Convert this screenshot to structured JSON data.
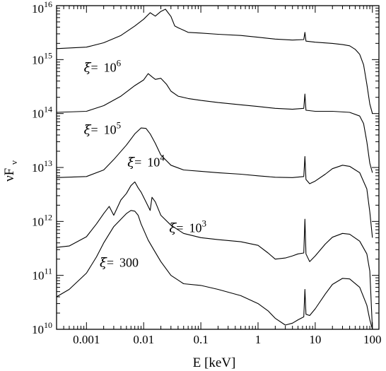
{
  "chart_data": {
    "type": "line",
    "xlabel": "E [keV]",
    "ylabel_base": "νF",
    "ylabel_sub": "ν",
    "xscale": "log",
    "yscale": "log",
    "xlim": [
      0.0003,
      130
    ],
    "ylim": [
      10000000000.0,
      1e+16
    ],
    "grid": false,
    "x_ticks": [
      {
        "value": 0.001,
        "label": "0.001"
      },
      {
        "value": 0.01,
        "label": "0.01"
      },
      {
        "value": 0.1,
        "label": "0.1"
      },
      {
        "value": 1,
        "label": "1"
      },
      {
        "value": 10,
        "label": "10"
      },
      {
        "value": 100,
        "label": "100"
      }
    ],
    "y_ticks": [
      {
        "value": 10000000000.0,
        "base": "10",
        "exp": "10"
      },
      {
        "value": 100000000000.0,
        "base": "10",
        "exp": "11"
      },
      {
        "value": 1000000000000.0,
        "base": "10",
        "exp": "12"
      },
      {
        "value": 10000000000000.0,
        "base": "10",
        "exp": "13"
      },
      {
        "value": 100000000000000.0,
        "base": "10",
        "exp": "14"
      },
      {
        "value": 1000000000000000.0,
        "base": "10",
        "exp": "15"
      },
      {
        "value": 1e+16,
        "base": "10",
        "exp": "16"
      }
    ],
    "annotations": [
      {
        "sym": "ξ",
        "eq": "=",
        "text": "10",
        "sup": "6",
        "x": 0.0009,
        "y": 600000000000000.0
      },
      {
        "sym": "ξ",
        "eq": "=",
        "text": "10",
        "sup": "5",
        "x": 0.0009,
        "y": 42000000000000.0
      },
      {
        "sym": "ξ",
        "eq": "=",
        "text": "10",
        "sup": "4",
        "x": 0.0052,
        "y": 10500000000000.0
      },
      {
        "sym": "ξ",
        "eq": "=",
        "text": "10",
        "sup": "3",
        "x": 0.028,
        "y": 630000000000.0
      },
      {
        "sym": "ξ",
        "eq": "=",
        "text": "300",
        "sup": "",
        "x": 0.0017,
        "y": 145000000000.0
      }
    ],
    "series": [
      {
        "xi": 1000000,
        "points": [
          [
            0.0003,
            1600000000000000.0
          ],
          [
            0.001,
            1700000000000000.0
          ],
          [
            0.002,
            2050000000000000.0
          ],
          [
            0.004,
            2800000000000000.0
          ],
          [
            0.007,
            4200000000000000.0
          ],
          [
            0.01,
            5600000000000000.0
          ],
          [
            0.013,
            7400000000000000.0
          ],
          [
            0.016,
            6400000000000000.0
          ],
          [
            0.02,
            7800000000000000.0
          ],
          [
            0.024,
            8600000000000000.0
          ],
          [
            0.03,
            6300000000000000.0
          ],
          [
            0.035,
            4200000000000000.0
          ],
          [
            0.04,
            3900000000000000.0
          ],
          [
            0.05,
            3500000000000000.0
          ],
          [
            0.06,
            3200000000000000.0
          ],
          [
            0.1,
            3100000000000000.0
          ],
          [
            0.2,
            2950000000000000.0
          ],
          [
            0.5,
            2800000000000000.0
          ],
          [
            1,
            2600000000000000.0
          ],
          [
            2,
            2400000000000000.0
          ],
          [
            4,
            2300000000000000.0
          ],
          [
            6.3,
            2350000000000000.0
          ],
          [
            6.6,
            3200000000000000.0
          ],
          [
            6.9,
            2200000000000000.0
          ],
          [
            10,
            2100000000000000.0
          ],
          [
            20,
            2000000000000000.0
          ],
          [
            30,
            1900000000000000.0
          ],
          [
            40,
            1800000000000000.0
          ],
          [
            50,
            1550000000000000.0
          ],
          [
            60,
            1250000000000000.0
          ],
          [
            70,
            800000000000000.0
          ],
          [
            80,
            350000000000000.0
          ],
          [
            90,
            150000000000000.0
          ],
          [
            100,
            100000000000000.0
          ]
        ]
      },
      {
        "xi": 100000,
        "points": [
          [
            0.0003,
            105000000000000.0
          ],
          [
            0.001,
            110000000000000.0
          ],
          [
            0.002,
            140000000000000.0
          ],
          [
            0.004,
            210000000000000.0
          ],
          [
            0.007,
            330000000000000.0
          ],
          [
            0.01,
            420000000000000.0
          ],
          [
            0.012,
            550000000000000.0
          ],
          [
            0.014,
            480000000000000.0
          ],
          [
            0.016,
            430000000000000.0
          ],
          [
            0.02,
            450000000000000.0
          ],
          [
            0.025,
            350000000000000.0
          ],
          [
            0.03,
            260000000000000.0
          ],
          [
            0.04,
            210000000000000.0
          ],
          [
            0.06,
            190000000000000.0
          ],
          [
            0.1,
            175000000000000.0
          ],
          [
            0.2,
            160000000000000.0
          ],
          [
            0.5,
            145000000000000.0
          ],
          [
            1,
            135000000000000.0
          ],
          [
            2,
            125000000000000.0
          ],
          [
            4,
            120000000000000.0
          ],
          [
            6.3,
            125000000000000.0
          ],
          [
            6.6,
            230000000000000.0
          ],
          [
            6.9,
            115000000000000.0
          ],
          [
            10,
            110000000000000.0
          ],
          [
            20,
            110000000000000.0
          ],
          [
            40,
            105000000000000.0
          ],
          [
            60,
            90000000000000.0
          ],
          [
            70,
            65000000000000.0
          ],
          [
            80,
            30000000000000.0
          ],
          [
            90,
            12000000000000.0
          ],
          [
            100,
            8000000000000.0
          ]
        ]
      },
      {
        "xi": 10000,
        "points": [
          [
            0.0003,
            6500000000000.0
          ],
          [
            0.001,
            6800000000000.0
          ],
          [
            0.002,
            9000000000000.0
          ],
          [
            0.003,
            14000000000000.0
          ],
          [
            0.005,
            26000000000000.0
          ],
          [
            0.007,
            42000000000000.0
          ],
          [
            0.009,
            54000000000000.0
          ],
          [
            0.011,
            53000000000000.0
          ],
          [
            0.013,
            42000000000000.0
          ],
          [
            0.016,
            28000000000000.0
          ],
          [
            0.02,
            17000000000000.0
          ],
          [
            0.03,
            11000000000000.0
          ],
          [
            0.05,
            9000000000000.0
          ],
          [
            0.1,
            8500000000000.0
          ],
          [
            0.2,
            8000000000000.0
          ],
          [
            0.5,
            7500000000000.0
          ],
          [
            1,
            7000000000000.0
          ],
          [
            2,
            6600000000000.0
          ],
          [
            4,
            6500000000000.0
          ],
          [
            6.3,
            6800000000000.0
          ],
          [
            6.6,
            16000000000000.0
          ],
          [
            6.9,
            6000000000000.0
          ],
          [
            8,
            5000000000000.0
          ],
          [
            10,
            5600000000000.0
          ],
          [
            15,
            7500000000000.0
          ],
          [
            20,
            9500000000000.0
          ],
          [
            30,
            11000000000000.0
          ],
          [
            40,
            10500000000000.0
          ],
          [
            60,
            8000000000000.0
          ],
          [
            80,
            4000000000000.0
          ],
          [
            90,
            1500000000000.0
          ],
          [
            100,
            500000000000.0
          ]
        ]
      },
      {
        "xi": 1000,
        "points": [
          [
            0.0003,
            330000000000.0
          ],
          [
            0.0005,
            350000000000.0
          ],
          [
            0.001,
            520000000000.0
          ],
          [
            0.0015,
            900000000000.0
          ],
          [
            0.002,
            1400000000000.0
          ],
          [
            0.0025,
            1900000000000.0
          ],
          [
            0.003,
            1300000000000.0
          ],
          [
            0.004,
            2500000000000.0
          ],
          [
            0.005,
            3300000000000.0
          ],
          [
            0.006,
            4600000000000.0
          ],
          [
            0.007,
            5400000000000.0
          ],
          [
            0.008,
            4200000000000.0
          ],
          [
            0.009,
            3500000000000.0
          ],
          [
            0.011,
            2300000000000.0
          ],
          [
            0.013,
            1600000000000.0
          ],
          [
            0.014,
            2800000000000.0
          ],
          [
            0.016,
            2300000000000.0
          ],
          [
            0.02,
            1300000000000.0
          ],
          [
            0.03,
            850000000000.0
          ],
          [
            0.05,
            600000000000.0
          ],
          [
            0.1,
            500000000000.0
          ],
          [
            0.2,
            460000000000.0
          ],
          [
            0.5,
            420000000000.0
          ],
          [
            1,
            360000000000.0
          ],
          [
            1.5,
            260000000000.0
          ],
          [
            2,
            200000000000.0
          ],
          [
            3,
            210000000000.0
          ],
          [
            4,
            230000000000.0
          ],
          [
            5,
            250000000000.0
          ],
          [
            6.3,
            260000000000.0
          ],
          [
            6.6,
            1100000000000.0
          ],
          [
            6.9,
            250000000000.0
          ],
          [
            8,
            180000000000.0
          ],
          [
            10,
            230000000000.0
          ],
          [
            15,
            380000000000.0
          ],
          [
            20,
            510000000000.0
          ],
          [
            30,
            600000000000.0
          ],
          [
            40,
            580000000000.0
          ],
          [
            60,
            430000000000.0
          ],
          [
            80,
            250000000000.0
          ],
          [
            90,
            120000000000.0
          ],
          [
            100,
            10000000000.0
          ]
        ]
      },
      {
        "xi": 300,
        "points": [
          [
            0.0003,
            40000000000.0
          ],
          [
            0.0005,
            55000000000.0
          ],
          [
            0.001,
            110000000000.0
          ],
          [
            0.0015,
            220000000000.0
          ],
          [
            0.002,
            400000000000.0
          ],
          [
            0.003,
            800000000000.0
          ],
          [
            0.004,
            1100000000000.0
          ],
          [
            0.005,
            1400000000000.0
          ],
          [
            0.006,
            1600000000000.0
          ],
          [
            0.007,
            1550000000000.0
          ],
          [
            0.008,
            1300000000000.0
          ],
          [
            0.009,
            900000000000.0
          ],
          [
            0.01,
            700000000000.0
          ],
          [
            0.012,
            450000000000.0
          ],
          [
            0.015,
            300000000000.0
          ],
          [
            0.02,
            180000000000.0
          ],
          [
            0.03,
            100000000000.0
          ],
          [
            0.05,
            70000000000.0
          ],
          [
            0.1,
            65000000000.0
          ],
          [
            0.2,
            55000000000.0
          ],
          [
            0.5,
            42000000000.0
          ],
          [
            1,
            30000000000.0
          ],
          [
            1.5,
            22000000000.0
          ],
          [
            2,
            16000000000.0
          ],
          [
            3,
            12000000000.0
          ],
          [
            4,
            13000000000.0
          ],
          [
            5,
            15000000000.0
          ],
          [
            6.3,
            17000000000.0
          ],
          [
            6.6,
            55000000000.0
          ],
          [
            6.9,
            19000000000.0
          ],
          [
            8,
            18000000000.0
          ],
          [
            10,
            24000000000.0
          ],
          [
            15,
            45000000000.0
          ],
          [
            20,
            68000000000.0
          ],
          [
            30,
            88000000000.0
          ],
          [
            40,
            86000000000.0
          ],
          [
            60,
            60000000000.0
          ],
          [
            80,
            28000000000.0
          ],
          [
            90,
            15000000000.0
          ],
          [
            100,
            10000000000.0
          ]
        ]
      }
    ]
  }
}
